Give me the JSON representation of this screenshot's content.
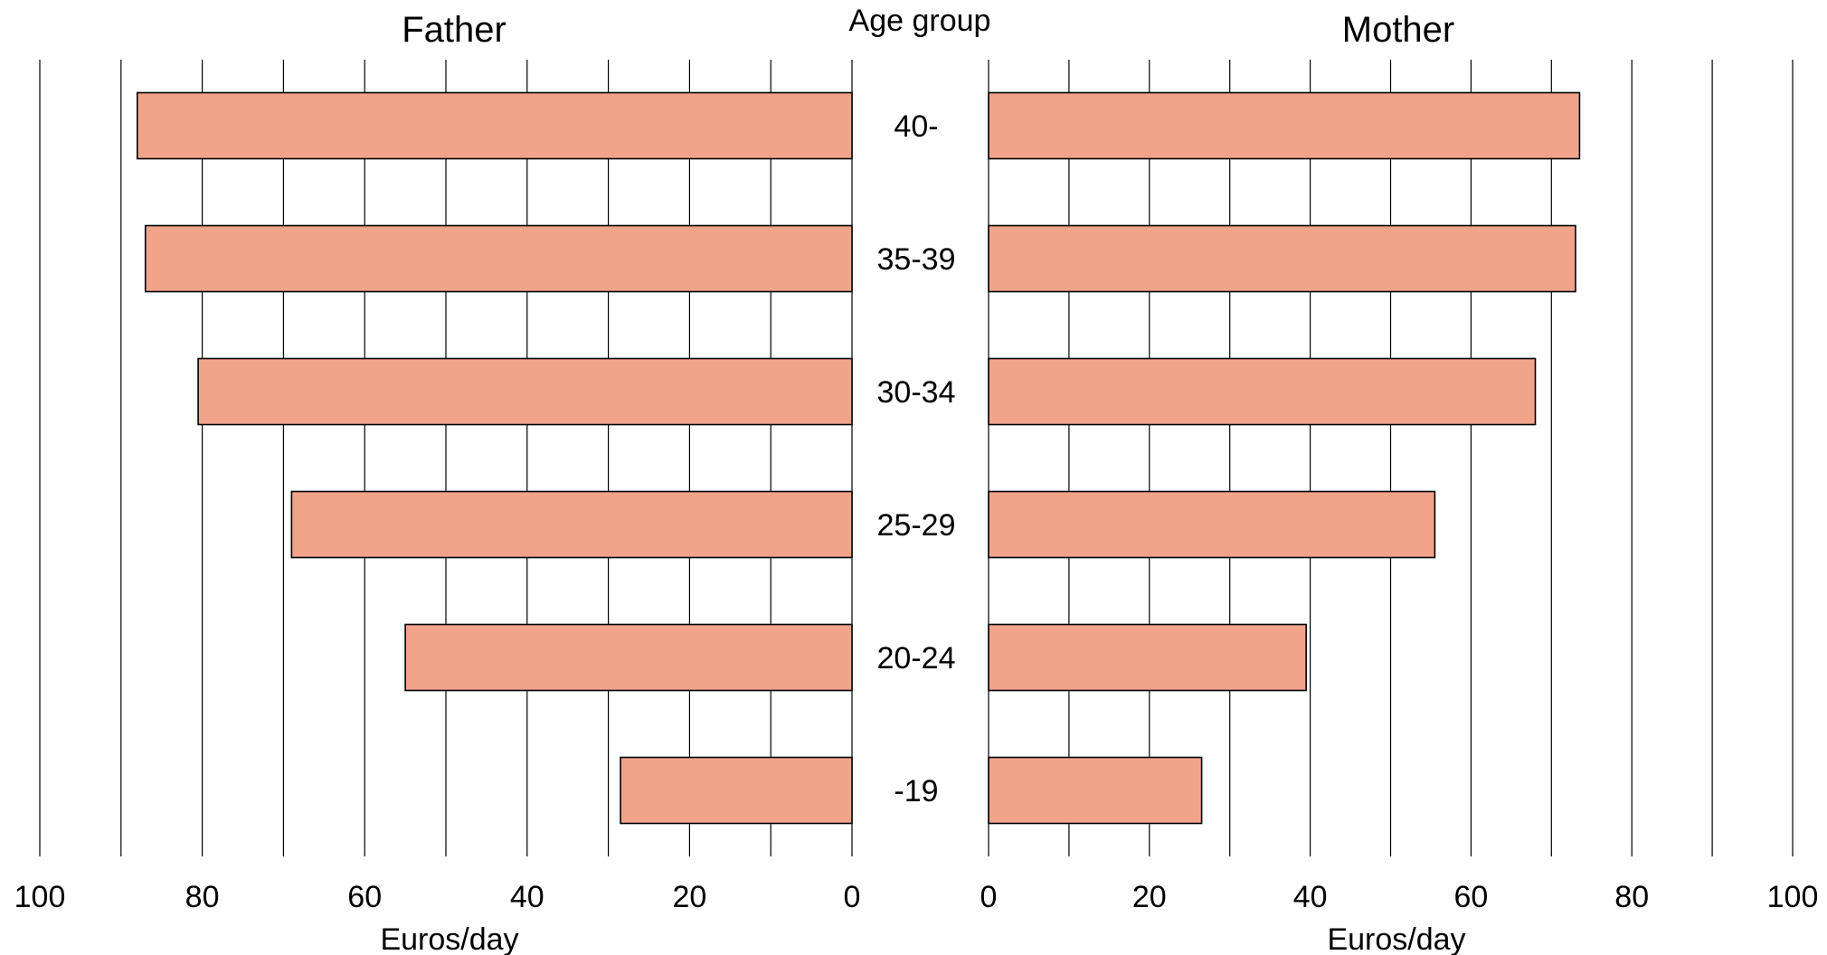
{
  "chart_data": {
    "type": "bar",
    "center_label": "Age group",
    "categories": [
      "40-",
      "35-39",
      "30-34",
      "25-29",
      "20-24",
      "-19"
    ],
    "series": [
      {
        "name": "Father",
        "values": [
          88,
          87,
          80.5,
          69,
          55,
          28.5
        ]
      },
      {
        "name": "Mother",
        "values": [
          73.5,
          73,
          68,
          55.5,
          39.5,
          26.5
        ]
      }
    ],
    "father_axis": {
      "xlabel": "Euros/day",
      "xlim": [
        0,
        100
      ],
      "ticks": [
        "0",
        "20",
        "40",
        "60",
        "80",
        "100"
      ]
    },
    "mother_axis": {
      "xlabel": "Euros/day",
      "xlim": [
        0,
        100
      ],
      "ticks": [
        "0",
        "20",
        "40",
        "60",
        "80",
        "100"
      ]
    },
    "grid": true,
    "bar_color": "#F2A48A",
    "bar_edge_color": "#000000"
  }
}
